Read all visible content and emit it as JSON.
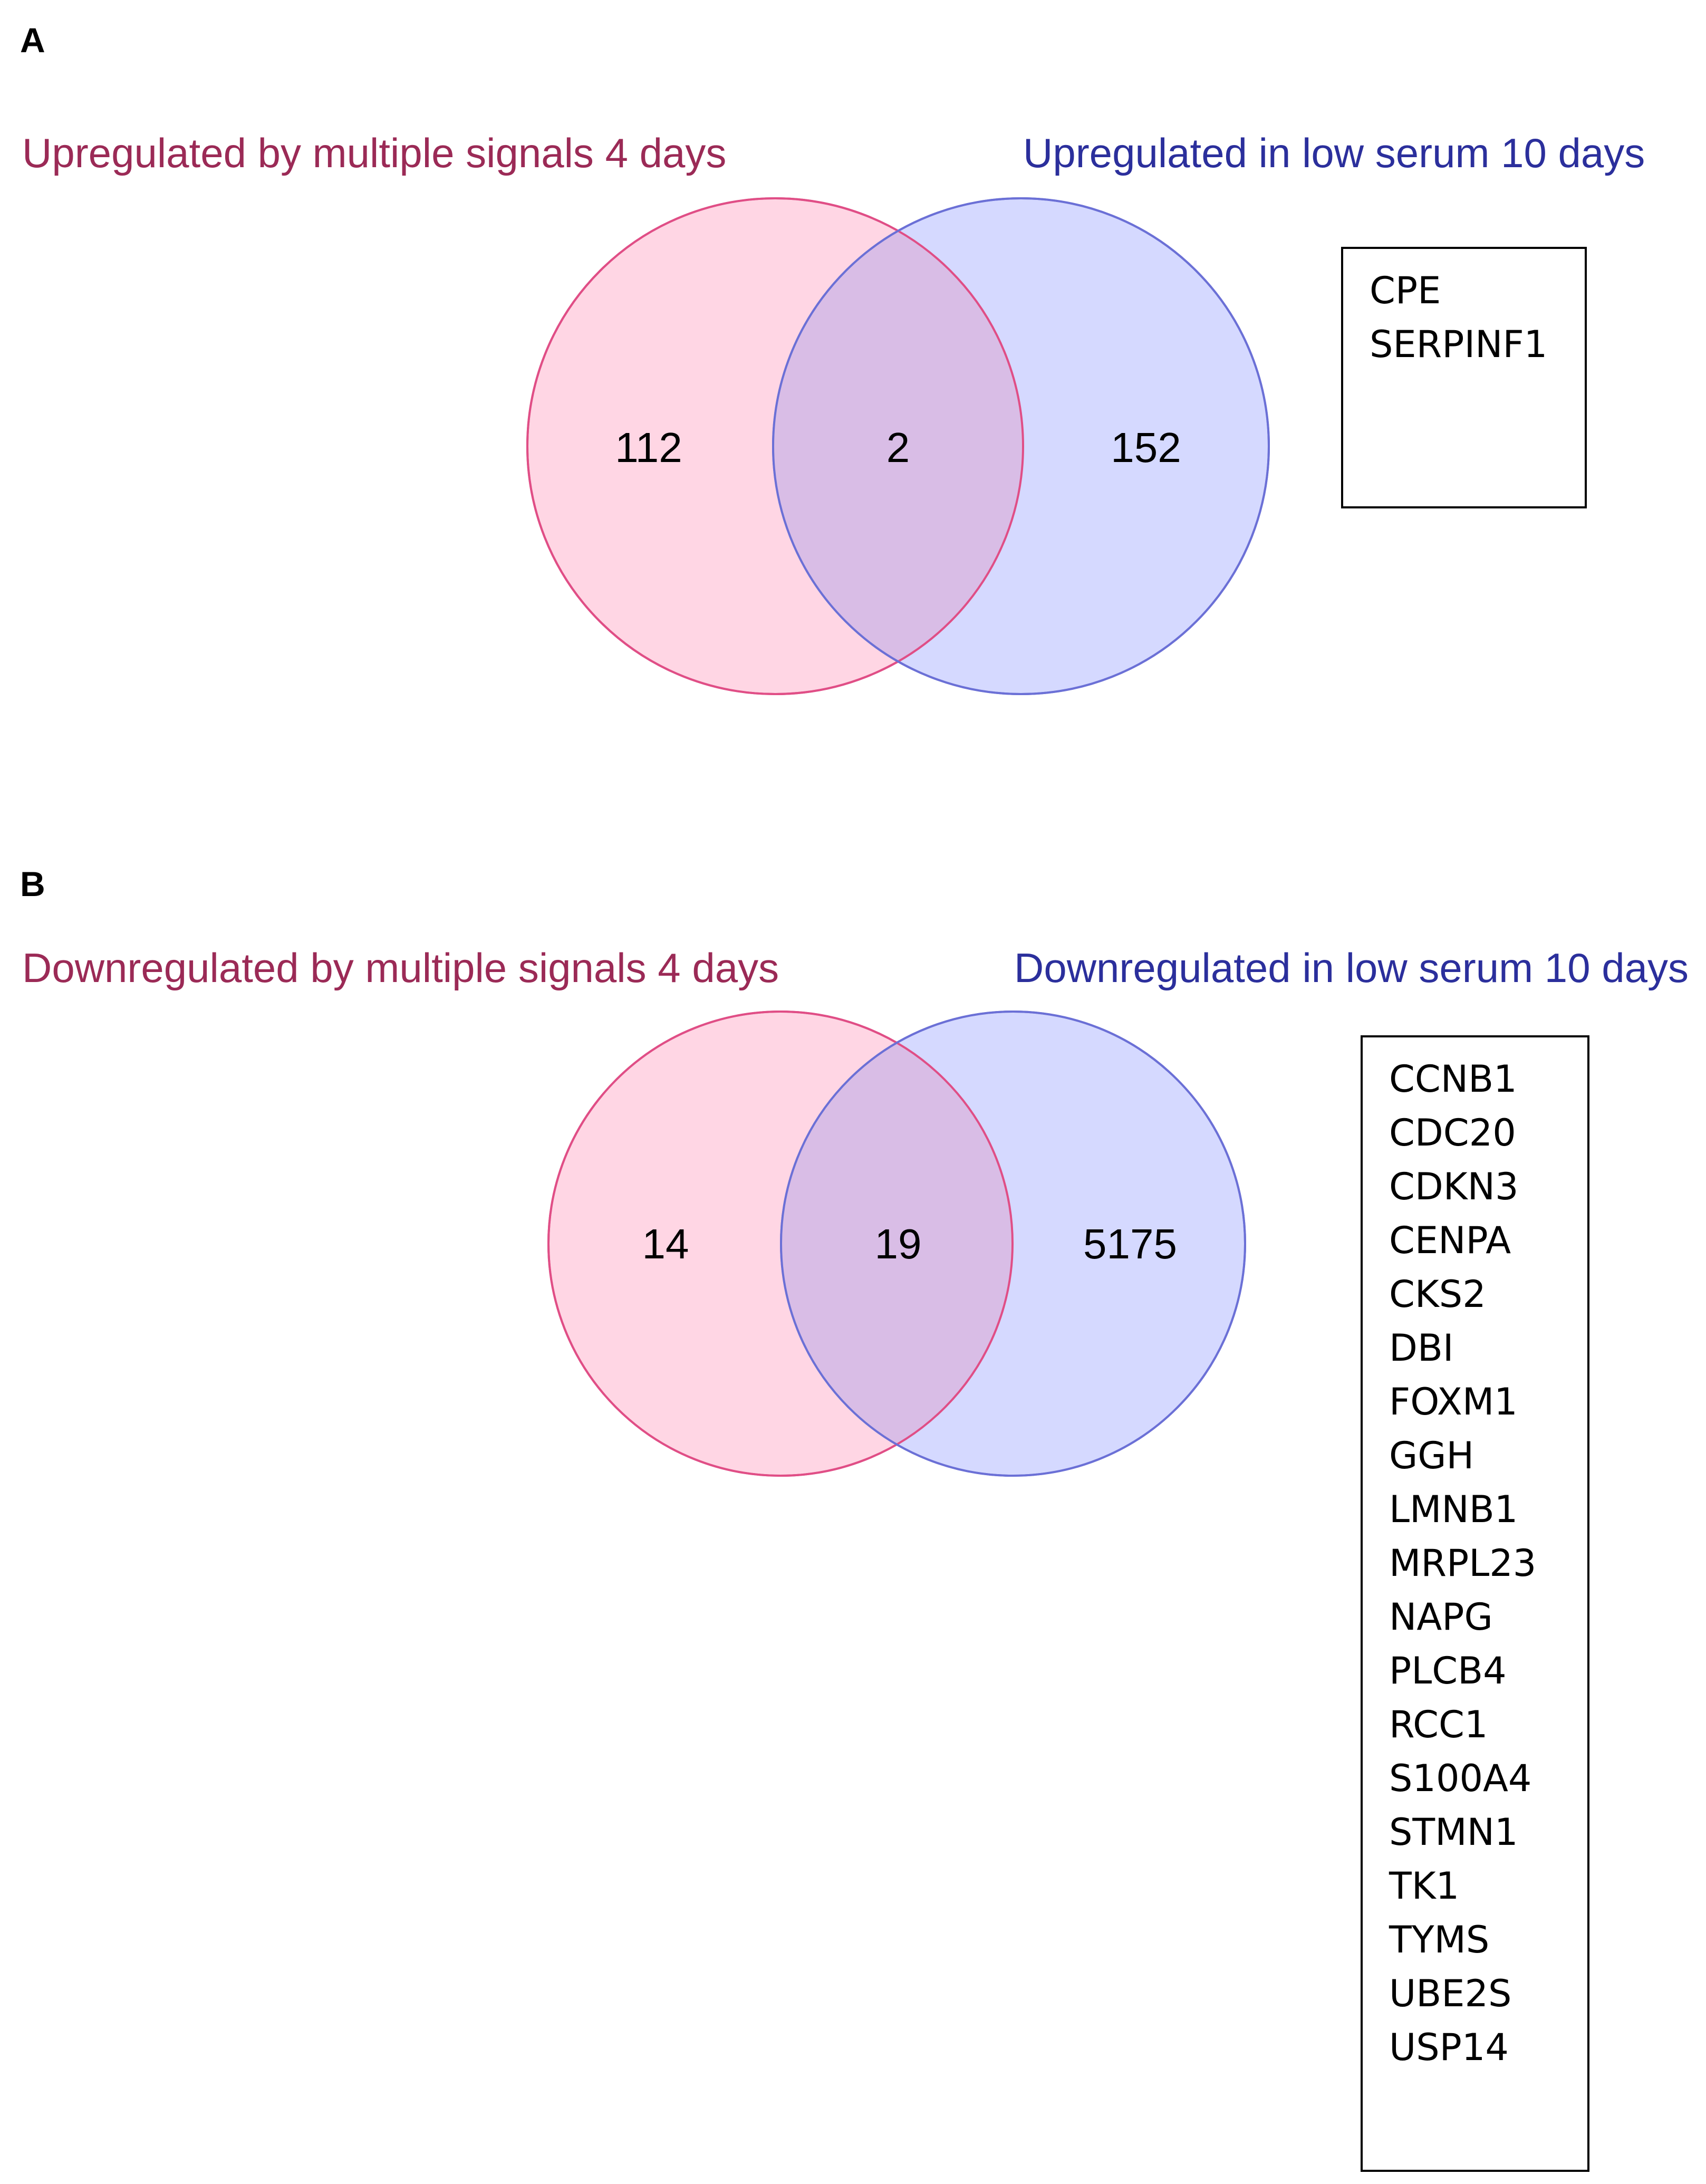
{
  "colors": {
    "left_label": "#9b2a56",
    "right_label": "#2b2f9c",
    "left_fill": "#ffd6e4",
    "left_stroke": "#e04e86",
    "right_fill": "#d5d9ff",
    "right_stroke": "#6b70d6",
    "overlap_fill": "#d9bde6"
  },
  "panels": [
    {
      "letter": "A",
      "left_label": "Upregulated by multiple signals 4 days",
      "right_label": "Upregulated in low serum 10 days",
      "counts": {
        "left_only": "112",
        "both": "2",
        "right_only": "152"
      },
      "genes": [
        "CPE",
        "SERPINF1"
      ]
    },
    {
      "letter": "B",
      "left_label": "Downregulated by multiple signals 4 days",
      "right_label": "Downregulated in low serum 10 days",
      "counts": {
        "left_only": "14",
        "both": "19",
        "right_only": "5175"
      },
      "genes": [
        "CCNB1",
        "CDC20",
        "CDKN3",
        "CENPA",
        "CKS2",
        "DBI",
        "FOXM1",
        "GGH",
        "LMNB1",
        "MRPL23",
        "NAPG",
        "PLCB4",
        "RCC1",
        "S100A4",
        "STMN1",
        "TK1",
        "TYMS",
        "UBE2S",
        "USP14"
      ]
    }
  ]
}
